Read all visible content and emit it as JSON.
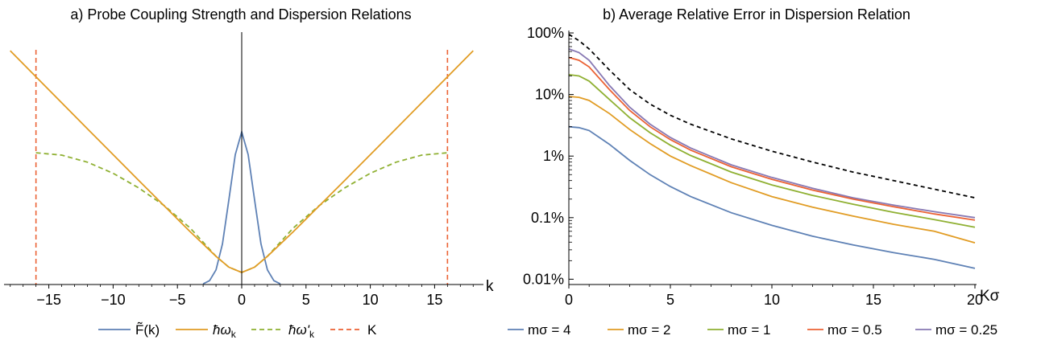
{
  "colors": {
    "blue": "#5e81b5",
    "orange": "#e19c24",
    "green": "#8fb032",
    "red": "#eb6235",
    "purple": "#8778b3",
    "black": "#000000"
  },
  "chart_data": [
    {
      "type": "line",
      "title": "a) Probe Coupling Strength and Dispersion Relations",
      "xlabel": "k",
      "ylabel": "",
      "xlim": [
        -18,
        18
      ],
      "x_ticks": [
        -15,
        -10,
        -5,
        0,
        5,
        10,
        15
      ],
      "x_tick_labels": [
        "−15",
        "−10",
        "−5",
        "0",
        "5",
        "10",
        "15"
      ],
      "y_ticks_shown": false,
      "grid": false,
      "legend_position": "bottom",
      "cutoff_K": 16,
      "series": [
        {
          "name": "F̃(k)",
          "legend_label": "F̃(k)",
          "color_key": "blue",
          "dash": "solid",
          "description": "Gaussian probe coupling centred at k = 0",
          "x": [
            -3,
            -2.5,
            -2,
            -1.5,
            -1,
            -0.5,
            0,
            0.5,
            1,
            1.5,
            2,
            2.5,
            3
          ],
          "y": [
            0.02,
            0.12,
            0.45,
            1.25,
            2.6,
            4.0,
            4.7,
            4.0,
            2.6,
            1.25,
            0.45,
            0.12,
            0.02
          ]
        },
        {
          "name": "ħωk",
          "legend_label": "ħω",
          "legend_subscript": "k",
          "color_key": "orange",
          "dash": "solid",
          "description": "Relativistic dispersion sqrt(k^2 + m^2), m ≈ 1",
          "x": [
            -18,
            -16,
            -12,
            -8,
            -4,
            -2,
            -1,
            0,
            1,
            2,
            4,
            8,
            12,
            16,
            18
          ],
          "y": [
            18.03,
            16.03,
            12.04,
            8.06,
            4.12,
            2.24,
            1.41,
            1.0,
            1.41,
            2.24,
            4.12,
            8.06,
            12.04,
            16.03,
            18.03
          ]
        },
        {
          "name": "ħω'k",
          "legend_label": "ħω'",
          "legend_subscript": "k",
          "color_key": "green",
          "dash": "dashed",
          "description": "Lattice-modified dispersion, saturating at the cutoff K",
          "x": [
            -16,
            -14,
            -12,
            -10,
            -8,
            -6,
            -4,
            -2,
            -1,
            0,
            1,
            2,
            4,
            6,
            8,
            10,
            12,
            14,
            16
          ],
          "y": [
            10.19,
            10.01,
            9.47,
            8.62,
            7.49,
            6.12,
            4.4,
            2.24,
            1.41,
            1.0,
            1.41,
            2.24,
            4.4,
            6.12,
            7.49,
            8.62,
            9.47,
            10.01,
            10.19
          ]
        },
        {
          "name": "K",
          "legend_label": "K",
          "color_key": "red",
          "dash": "dashed",
          "description": "Vertical lines at k = ±K",
          "x": [
            -16,
            16
          ]
        }
      ]
    },
    {
      "type": "line",
      "title": "b) Average Relative Error in Dispersion Relation",
      "xlabel": "Kσ",
      "ylabel": "",
      "xlim": [
        0,
        20
      ],
      "y_scale": "log",
      "ylim": [
        0.005,
        100
      ],
      "x_ticks": [
        0,
        5,
        10,
        15,
        20
      ],
      "y_ticks": [
        100,
        10,
        1,
        0.1,
        0.01
      ],
      "y_tick_labels": [
        "100%",
        "10%",
        "1%",
        "0.1%",
        "0.01%"
      ],
      "grid": false,
      "legend_position": "bottom",
      "x": [
        0,
        0.5,
        1,
        2,
        3,
        4,
        5,
        6,
        8,
        10,
        12,
        14,
        16,
        18,
        20
      ],
      "series": [
        {
          "name": "bound",
          "color_key": "black",
          "dash": "dashed",
          "values": [
            95,
            75,
            55,
            25,
            12,
            7,
            4.6,
            3.3,
            1.9,
            1.2,
            0.8,
            0.55,
            0.4,
            0.29,
            0.21
          ]
        },
        {
          "name": "mσ = 0.25",
          "color_key": "purple",
          "dash": "solid",
          "values": [
            55,
            48,
            36,
            14,
            6.2,
            3.3,
            2.0,
            1.35,
            0.72,
            0.45,
            0.3,
            0.21,
            0.16,
            0.125,
            0.1
          ]
        },
        {
          "name": "mσ = 0.5",
          "color_key": "red",
          "dash": "solid",
          "values": [
            40,
            36,
            28,
            12,
            5.5,
            3.0,
            1.85,
            1.25,
            0.67,
            0.42,
            0.28,
            0.2,
            0.15,
            0.115,
            0.091
          ]
        },
        {
          "name": "mσ = 1",
          "color_key": "green",
          "dash": "solid",
          "values": [
            21,
            20,
            16.5,
            8.3,
            4.2,
            2.4,
            1.5,
            1.02,
            0.55,
            0.34,
            0.23,
            0.165,
            0.122,
            0.093,
            0.07
          ]
        },
        {
          "name": "mσ = 2",
          "color_key": "orange",
          "dash": "solid",
          "values": [
            9.3,
            9.0,
            8.0,
            4.9,
            2.7,
            1.6,
            1.0,
            0.7,
            0.37,
            0.22,
            0.148,
            0.106,
            0.078,
            0.06,
            0.039
          ]
        },
        {
          "name": "mσ = 4",
          "color_key": "blue",
          "dash": "solid",
          "values": [
            3.0,
            2.9,
            2.6,
            1.55,
            0.85,
            0.5,
            0.32,
            0.22,
            0.12,
            0.075,
            0.05,
            0.036,
            0.027,
            0.021,
            0.015
          ]
        }
      ]
    }
  ]
}
